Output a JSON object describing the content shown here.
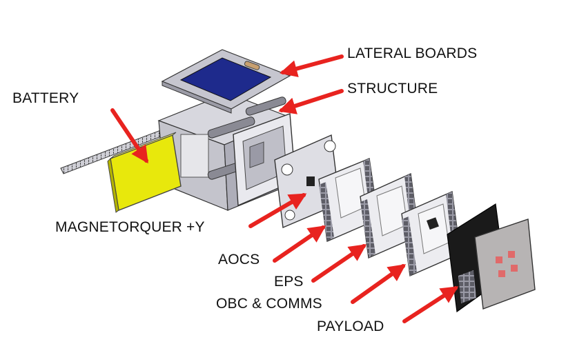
{
  "labels": {
    "lateral_boards": "LATERAL BOARDS",
    "structure": "STRUCTURE",
    "battery": "BATTERY",
    "magnetorquer": "MAGNETORQUER +Y",
    "aocs": "AOCS",
    "eps": "EPS",
    "obc_comms": "OBC & COMMS",
    "payload": "PAYLOAD"
  },
  "colors": {
    "arrow": "#e8231f",
    "battery": "#e8e80c",
    "pcb_dark": "#1e2a8c",
    "metal": "#b9b9c6",
    "payload_board": "#1a1a1a"
  }
}
